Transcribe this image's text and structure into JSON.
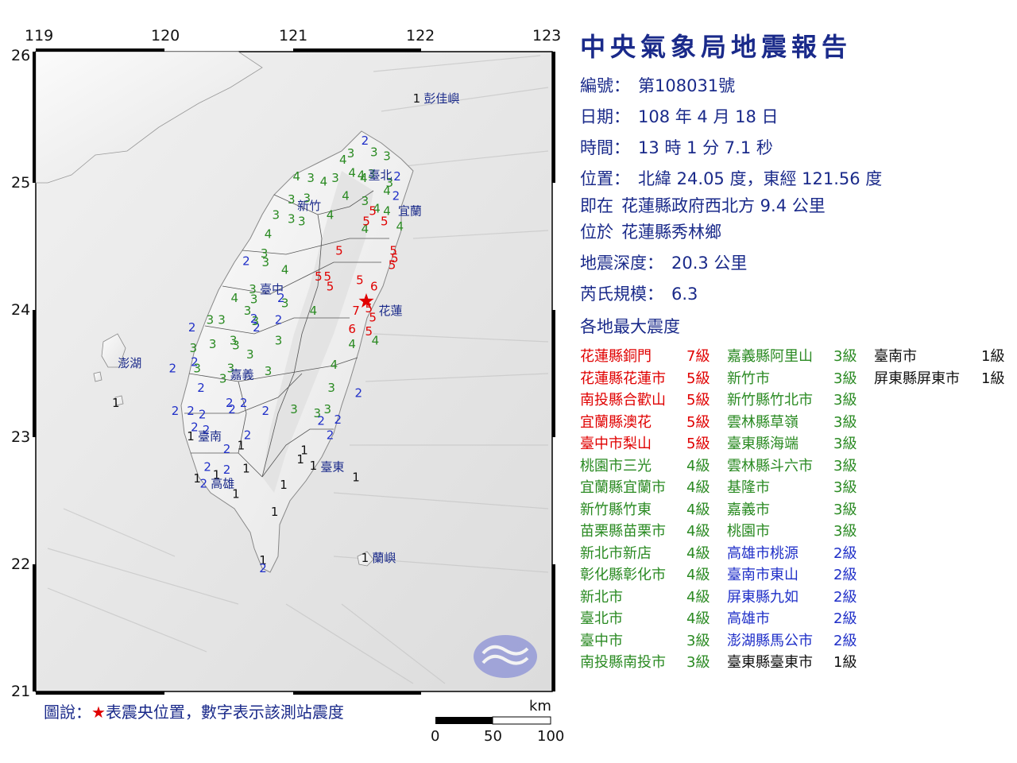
{
  "report": {
    "title": "中央氣象局地震報告",
    "number_label": "編號：",
    "number": "第108031號",
    "date_label": "日期：",
    "date": "108 年 4 月 18 日",
    "time_label": "時間：",
    "time": "13 時 1 分 7.1 秒",
    "position_label": "位置：",
    "position": "北緯 24.05 度，東經 121.56 度",
    "ref_label": "即在",
    "ref": "花蓮縣政府西北方 9.4 公里",
    "located_label": "位於",
    "located": "花蓮縣秀林鄉",
    "depth_label": "地震深度：",
    "depth": "20.3 公里",
    "magnitude_label": "芮氏規模：",
    "magnitude": "6.3",
    "max_intensity_heading": "各地最大震度"
  },
  "colors": {
    "title": "#1a2a8a",
    "epicenter": "#e00000",
    "int7": "#e00000",
    "int6": "#e00000",
    "int5": "#e00000",
    "int4": "#2a8a22",
    "int3": "#2a8a22",
    "int2": "#1f2fc8",
    "int1": "#111111"
  },
  "intensity_list": [
    {
      "loc": "花蓮縣銅門",
      "lvl": "7級",
      "i": 7
    },
    {
      "loc": "花蓮縣花蓮市",
      "lvl": "5級",
      "i": 5
    },
    {
      "loc": "南投縣合歡山",
      "lvl": "5級",
      "i": 5
    },
    {
      "loc": "宜蘭縣澳花",
      "lvl": "5級",
      "i": 5
    },
    {
      "loc": "臺中市梨山",
      "lvl": "5級",
      "i": 5
    },
    {
      "loc": "桃園市三光",
      "lvl": "4級",
      "i": 4
    },
    {
      "loc": "宜蘭縣宜蘭市",
      "lvl": "4級",
      "i": 4
    },
    {
      "loc": "新竹縣竹東",
      "lvl": "4級",
      "i": 4
    },
    {
      "loc": "苗栗縣苗栗市",
      "lvl": "4級",
      "i": 4
    },
    {
      "loc": "新北市新店",
      "lvl": "4級",
      "i": 4
    },
    {
      "loc": "彰化縣彰化市",
      "lvl": "4級",
      "i": 4
    },
    {
      "loc": "新北市",
      "lvl": "4級",
      "i": 4
    },
    {
      "loc": "臺北市",
      "lvl": "4級",
      "i": 4
    },
    {
      "loc": "臺中市",
      "lvl": "3級",
      "i": 3
    },
    {
      "loc": "南投縣南投市",
      "lvl": "3級",
      "i": 3
    },
    {
      "loc": "嘉義縣阿里山",
      "lvl": "3級",
      "i": 3
    },
    {
      "loc": "新竹市",
      "lvl": "3級",
      "i": 3
    },
    {
      "loc": "新竹縣竹北市",
      "lvl": "3級",
      "i": 3
    },
    {
      "loc": "雲林縣草嶺",
      "lvl": "3級",
      "i": 3
    },
    {
      "loc": "臺東縣海端",
      "lvl": "3級",
      "i": 3
    },
    {
      "loc": "雲林縣斗六市",
      "lvl": "3級",
      "i": 3
    },
    {
      "loc": "基隆市",
      "lvl": "3級",
      "i": 3
    },
    {
      "loc": "嘉義市",
      "lvl": "3級",
      "i": 3
    },
    {
      "loc": "桃園市",
      "lvl": "3級",
      "i": 3
    },
    {
      "loc": "高雄市桃源",
      "lvl": "2級",
      "i": 2
    },
    {
      "loc": "臺南市東山",
      "lvl": "2級",
      "i": 2
    },
    {
      "loc": "屏東縣九如",
      "lvl": "2級",
      "i": 2
    },
    {
      "loc": "高雄市",
      "lvl": "2級",
      "i": 2
    },
    {
      "loc": "澎湖縣馬公市",
      "lvl": "2級",
      "i": 2
    },
    {
      "loc": "臺東縣臺東市",
      "lvl": "1級",
      "i": 1
    },
    {
      "loc": "臺南市",
      "lvl": "1級",
      "i": 1
    },
    {
      "loc": "屏東縣屏東市",
      "lvl": "1級",
      "i": 1
    }
  ],
  "map": {
    "lon_ticks": [
      "119",
      "120",
      "121",
      "122",
      "123"
    ],
    "lat_ticks": [
      "26",
      "25",
      "24",
      "23",
      "22",
      "21"
    ],
    "cities": [
      {
        "name": "彭佳嶼",
        "lon": 121.95,
        "lat": 25.64
      },
      {
        "name": "臺北",
        "lon": 121.52,
        "lat": 25.04
      },
      {
        "name": "宜蘭",
        "lon": 121.75,
        "lat": 24.76
      },
      {
        "name": "新竹",
        "lon": 120.97,
        "lat": 24.8
      },
      {
        "name": "臺中",
        "lon": 120.68,
        "lat": 24.15
      },
      {
        "name": "花蓮",
        "lon": 121.6,
        "lat": 23.98
      },
      {
        "name": "澎湖",
        "lon": 119.58,
        "lat": 23.57
      },
      {
        "name": "嘉義",
        "lon": 120.45,
        "lat": 23.48
      },
      {
        "name": "臺南",
        "lon": 120.2,
        "lat": 23.0
      },
      {
        "name": "臺東",
        "lon": 121.15,
        "lat": 22.76
      },
      {
        "name": "高雄",
        "lon": 120.3,
        "lat": 22.63
      },
      {
        "name": "蘭嶼",
        "lon": 121.55,
        "lat": 22.05
      }
    ],
    "epicenter": {
      "lon": 121.56,
      "lat": 24.05
    },
    "stations": [
      {
        "v": "1",
        "lon": 121.95,
        "lat": 25.64
      },
      {
        "v": "2",
        "lon": 121.55,
        "lat": 25.31
      },
      {
        "v": "3",
        "lon": 121.62,
        "lat": 25.22
      },
      {
        "v": "3",
        "lon": 121.72,
        "lat": 25.19
      },
      {
        "v": "3",
        "lon": 121.44,
        "lat": 25.21
      },
      {
        "v": "4",
        "lon": 121.38,
        "lat": 25.16
      },
      {
        "v": "3",
        "lon": 121.32,
        "lat": 25.02
      },
      {
        "v": "4",
        "lon": 121.45,
        "lat": 25.06
      },
      {
        "v": "4",
        "lon": 121.54,
        "lat": 25.02
      },
      {
        "v": "3",
        "lon": 121.6,
        "lat": 25.05
      },
      {
        "v": "4",
        "lon": 121.52,
        "lat": 25.04
      },
      {
        "v": "3",
        "lon": 121.74,
        "lat": 24.98
      },
      {
        "v": "2",
        "lon": 121.8,
        "lat": 25.03
      },
      {
        "v": "2",
        "lon": 121.79,
        "lat": 24.88
      },
      {
        "v": "4",
        "lon": 121.72,
        "lat": 24.92
      },
      {
        "v": "4",
        "lon": 121.02,
        "lat": 25.03
      },
      {
        "v": "3",
        "lon": 121.13,
        "lat": 25.02
      },
      {
        "v": "4",
        "lon": 121.23,
        "lat": 24.99
      },
      {
        "v": "3",
        "lon": 120.98,
        "lat": 24.85
      },
      {
        "v": "3",
        "lon": 121.1,
        "lat": 24.86
      },
      {
        "v": "4",
        "lon": 121.4,
        "lat": 24.88
      },
      {
        "v": "3",
        "lon": 121.55,
        "lat": 24.84
      },
      {
        "v": "4",
        "lon": 121.64,
        "lat": 24.78
      },
      {
        "v": "5",
        "lon": 121.61,
        "lat": 24.76
      },
      {
        "v": "4",
        "lon": 121.72,
        "lat": 24.76
      },
      {
        "v": "3",
        "lon": 120.86,
        "lat": 24.73
      },
      {
        "v": "3",
        "lon": 120.98,
        "lat": 24.7
      },
      {
        "v": "3",
        "lon": 121.06,
        "lat": 24.68
      },
      {
        "v": "4",
        "lon": 121.28,
        "lat": 24.73
      },
      {
        "v": "4",
        "lon": 121.55,
        "lat": 24.62
      },
      {
        "v": "5",
        "lon": 121.56,
        "lat": 24.68
      },
      {
        "v": "5",
        "lon": 121.7,
        "lat": 24.68
      },
      {
        "v": "4",
        "lon": 121.82,
        "lat": 24.64
      },
      {
        "v": "4",
        "lon": 120.8,
        "lat": 24.58
      },
      {
        "v": "3",
        "lon": 120.77,
        "lat": 24.43
      },
      {
        "v": "5",
        "lon": 121.35,
        "lat": 24.45
      },
      {
        "v": "5",
        "lon": 121.77,
        "lat": 24.45
      },
      {
        "v": "5",
        "lon": 121.78,
        "lat": 24.39
      },
      {
        "v": "3",
        "lon": 120.78,
        "lat": 24.36
      },
      {
        "v": "4",
        "lon": 120.93,
        "lat": 24.3
      },
      {
        "v": "2",
        "lon": 120.63,
        "lat": 24.37
      },
      {
        "v": "5",
        "lon": 121.76,
        "lat": 24.34
      },
      {
        "v": "5",
        "lon": 121.19,
        "lat": 24.25
      },
      {
        "v": "5",
        "lon": 121.26,
        "lat": 24.25
      },
      {
        "v": "5",
        "lon": 121.28,
        "lat": 24.17
      },
      {
        "v": "5",
        "lon": 121.51,
        "lat": 24.22
      },
      {
        "v": "6",
        "lon": 121.62,
        "lat": 24.17
      },
      {
        "v": "3",
        "lon": 120.68,
        "lat": 24.15
      },
      {
        "v": "2",
        "lon": 120.9,
        "lat": 24.08
      },
      {
        "v": "3",
        "lon": 120.93,
        "lat": 24.04
      },
      {
        "v": "4",
        "lon": 120.54,
        "lat": 24.08
      },
      {
        "v": "3",
        "lon": 120.69,
        "lat": 24.07
      },
      {
        "v": "3",
        "lon": 120.64,
        "lat": 23.98
      },
      {
        "v": "2",
        "lon": 120.69,
        "lat": 23.92
      },
      {
        "v": "2",
        "lon": 120.88,
        "lat": 23.91
      },
      {
        "v": "4",
        "lon": 121.15,
        "lat": 23.98
      },
      {
        "v": "5",
        "lon": 121.58,
        "lat": 24.0
      },
      {
        "v": "7",
        "lon": 121.48,
        "lat": 23.98
      },
      {
        "v": "5",
        "lon": 121.61,
        "lat": 23.93
      },
      {
        "v": "6",
        "lon": 121.45,
        "lat": 23.84
      },
      {
        "v": "5",
        "lon": 121.58,
        "lat": 23.82
      },
      {
        "v": "3",
        "lon": 120.35,
        "lat": 23.91
      },
      {
        "v": "3",
        "lon": 120.44,
        "lat": 23.91
      },
      {
        "v": "2",
        "lon": 120.71,
        "lat": 23.85
      },
      {
        "v": "3",
        "lon": 120.7,
        "lat": 23.9
      },
      {
        "v": "2",
        "lon": 120.21,
        "lat": 23.85
      },
      {
        "v": "3",
        "lon": 120.88,
        "lat": 23.75
      },
      {
        "v": "4",
        "lon": 121.45,
        "lat": 23.72
      },
      {
        "v": "4",
        "lon": 121.63,
        "lat": 23.75
      },
      {
        "v": "3",
        "lon": 120.22,
        "lat": 23.69
      },
      {
        "v": "3",
        "lon": 120.37,
        "lat": 23.72
      },
      {
        "v": "3",
        "lon": 120.55,
        "lat": 23.71
      },
      {
        "v": "3",
        "lon": 120.53,
        "lat": 23.75
      },
      {
        "v": "3",
        "lon": 120.66,
        "lat": 23.64
      },
      {
        "v": "2",
        "lon": 120.23,
        "lat": 23.58
      },
      {
        "v": "3",
        "lon": 120.25,
        "lat": 23.53
      },
      {
        "v": "3",
        "lon": 120.51,
        "lat": 23.53
      },
      {
        "v": "3",
        "lon": 120.45,
        "lat": 23.45
      },
      {
        "v": "3",
        "lon": 120.8,
        "lat": 23.51
      },
      {
        "v": "4",
        "lon": 121.31,
        "lat": 23.56
      },
      {
        "v": "2",
        "lon": 120.06,
        "lat": 23.53
      },
      {
        "v": "2",
        "lon": 120.28,
        "lat": 23.38
      },
      {
        "v": "3",
        "lon": 121.29,
        "lat": 23.38
      },
      {
        "v": "2",
        "lon": 121.5,
        "lat": 23.34
      },
      {
        "v": "2",
        "lon": 120.5,
        "lat": 23.26
      },
      {
        "v": "2",
        "lon": 120.61,
        "lat": 23.26
      },
      {
        "v": "2",
        "lon": 120.52,
        "lat": 23.21
      },
      {
        "v": "1",
        "lon": 119.62,
        "lat": 23.26
      },
      {
        "v": "2",
        "lon": 120.08,
        "lat": 23.2
      },
      {
        "v": "2",
        "lon": 120.2,
        "lat": 23.2
      },
      {
        "v": "2",
        "lon": 120.29,
        "lat": 23.17
      },
      {
        "v": "2",
        "lon": 120.78,
        "lat": 23.2
      },
      {
        "v": "3",
        "lon": 121.0,
        "lat": 23.21
      },
      {
        "v": "3",
        "lon": 121.18,
        "lat": 23.18
      },
      {
        "v": "3",
        "lon": 121.26,
        "lat": 23.21
      },
      {
        "v": "2",
        "lon": 121.21,
        "lat": 23.12
      },
      {
        "v": "2",
        "lon": 121.34,
        "lat": 23.13
      },
      {
        "v": "2",
        "lon": 120.23,
        "lat": 23.07
      },
      {
        "v": "2",
        "lon": 120.32,
        "lat": 23.05
      },
      {
        "v": "1",
        "lon": 120.2,
        "lat": 23.0
      },
      {
        "v": "2",
        "lon": 120.64,
        "lat": 23.01
      },
      {
        "v": "2",
        "lon": 121.28,
        "lat": 23.01
      },
      {
        "v": "1",
        "lon": 120.59,
        "lat": 22.93
      },
      {
        "v": "2",
        "lon": 120.48,
        "lat": 22.9
      },
      {
        "v": "1",
        "lon": 121.08,
        "lat": 22.89
      },
      {
        "v": "1",
        "lon": 121.05,
        "lat": 22.82
      },
      {
        "v": "1",
        "lon": 121.15,
        "lat": 22.77
      },
      {
        "v": "2",
        "lon": 120.33,
        "lat": 22.76
      },
      {
        "v": "2",
        "lon": 120.48,
        "lat": 22.74
      },
      {
        "v": "1",
        "lon": 120.63,
        "lat": 22.75
      },
      {
        "v": "1",
        "lon": 120.4,
        "lat": 22.7
      },
      {
        "v": "1",
        "lon": 120.25,
        "lat": 22.67
      },
      {
        "v": "1",
        "lon": 121.48,
        "lat": 22.68
      },
      {
        "v": "2",
        "lon": 120.3,
        "lat": 22.63
      },
      {
        "v": "1",
        "lon": 120.92,
        "lat": 22.62
      },
      {
        "v": "1",
        "lon": 120.55,
        "lat": 22.55
      },
      {
        "v": "1",
        "lon": 120.85,
        "lat": 22.41
      },
      {
        "v": "1",
        "lon": 121.55,
        "lat": 22.05
      },
      {
        "v": "1",
        "lon": 120.76,
        "lat": 22.03
      },
      {
        "v": "2",
        "lon": 120.76,
        "lat": 21.97
      }
    ]
  },
  "legend": {
    "prefix": "圖說：",
    "star": "★",
    "text": "表震央位置，數字表示該測站震度",
    "scale_unit": "km",
    "scale_labels": [
      "0",
      "50",
      "100"
    ]
  }
}
